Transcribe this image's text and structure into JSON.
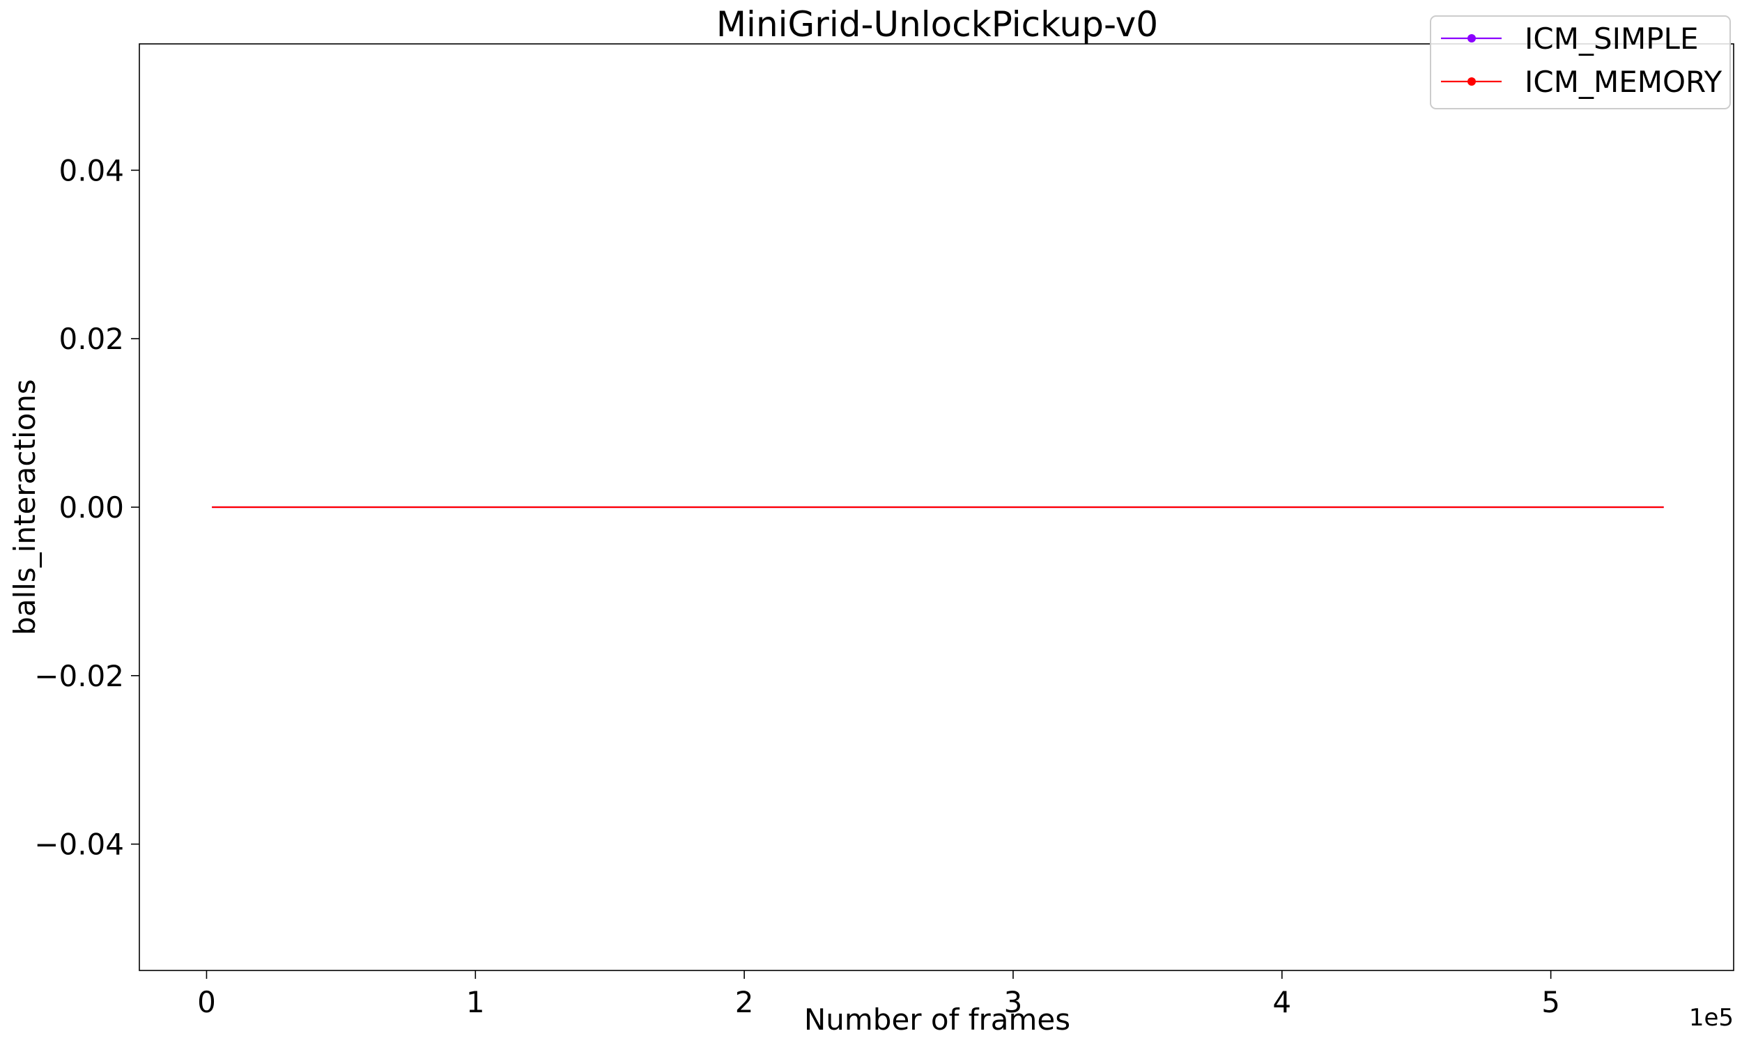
{
  "chart_data": {
    "type": "line",
    "title": "MiniGrid-UnlockPickup-v0",
    "xlabel": "Number of frames",
    "ylabel": "balls_interactions",
    "x_offset_label": "1e5",
    "xlim": [
      -25000,
      568000
    ],
    "ylim": [
      -0.055,
      0.055
    ],
    "x_ticks": [
      0,
      1,
      2,
      3,
      4,
      5
    ],
    "x_tick_scale": 100000,
    "y_ticks": [
      -0.04,
      -0.02,
      0.0,
      0.02,
      0.04
    ],
    "y_tick_labels": [
      "−0.04",
      "−0.02",
      "0.00",
      "0.02",
      "0.04"
    ],
    "grid": false,
    "legend_position": "top-right",
    "series": [
      {
        "name": "ICM_SIMPLE",
        "color": "#8b00ff",
        "x": [
          2000,
          542000
        ],
        "y": [
          0,
          0
        ]
      },
      {
        "name": "ICM_MEMORY",
        "color": "#ff0000",
        "x": [
          2000,
          542000
        ],
        "y": [
          0,
          0
        ]
      }
    ]
  }
}
